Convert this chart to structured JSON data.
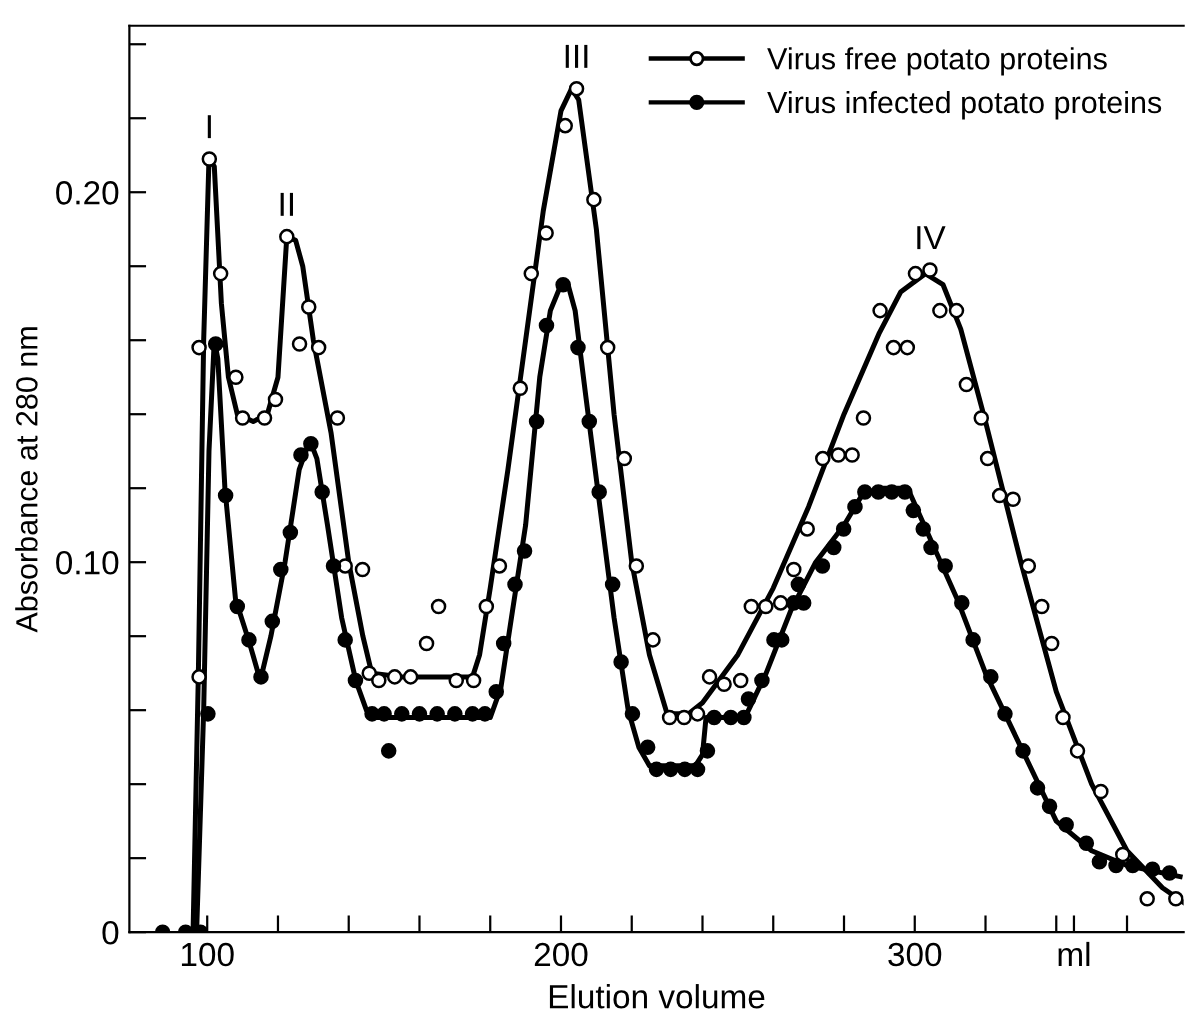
{
  "chart_data": {
    "type": "scatter",
    "xlabel": "Elution volume",
    "ylabel": "Absorbance at 280 nm",
    "xlim": [
      78,
      376
    ],
    "ylim": [
      0,
      0.245
    ],
    "xticks": [
      {
        "value": 100,
        "label": "100"
      },
      {
        "value": 120,
        "label": null
      },
      {
        "value": 140,
        "label": null
      },
      {
        "value": 160,
        "label": null
      },
      {
        "value": 180,
        "label": null
      },
      {
        "value": 200,
        "label": "200"
      },
      {
        "value": 220,
        "label": null
      },
      {
        "value": 240,
        "label": null
      },
      {
        "value": 260,
        "label": null
      },
      {
        "value": 280,
        "label": null
      },
      {
        "value": 300,
        "label": "300"
      },
      {
        "value": 320,
        "label": null
      },
      {
        "value": 340,
        "label": null
      },
      {
        "value": 345,
        "label": "ml"
      },
      {
        "value": 360,
        "label": null
      }
    ],
    "yticks": [
      0,
      {
        "value": 0.02,
        "label": null
      },
      {
        "value": 0.04,
        "label": null
      },
      {
        "value": 0.06,
        "label": null
      },
      {
        "value": 0.08,
        "label": null
      },
      {
        "value": 0.1,
        "label": "0.10"
      },
      {
        "value": 0.12,
        "label": null
      },
      {
        "value": 0.14,
        "label": null
      },
      {
        "value": 0.16,
        "label": null
      },
      {
        "value": 0.18,
        "label": null
      },
      {
        "value": 0.2,
        "label": "0.20"
      },
      {
        "value": 0.22,
        "label": null
      },
      {
        "value": 0.24,
        "label": null
      }
    ],
    "grid": false,
    "legend": "top right",
    "annotations": [
      {
        "text": "I",
        "x": 100.6,
        "y": 0.209
      },
      {
        "text": "II",
        "x": 122.5,
        "y": 0.188
      },
      {
        "text": "III",
        "x": 204.4,
        "y": 0.228
      },
      {
        "text": "IV",
        "x": 304.3,
        "y": 0.179
      }
    ],
    "series": [
      {
        "name": "Virus free potato proteins",
        "color": "#ffffff",
        "marker": "circle",
        "x": [
          97.7,
          97.7,
          100.6,
          103.8,
          108.1,
          110,
          116.2,
          119.3,
          122.5,
          128.7,
          126.1,
          131.5,
          136.8,
          139,
          143.9,
          145.8,
          148.5,
          153,
          157.5,
          162,
          165.4,
          170.4,
          175.3,
          178.9,
          182.6,
          188.5,
          191.6,
          195.8,
          201.2,
          204.4,
          209.3,
          213.2,
          217.9,
          221.3,
          226,
          230.7,
          234.8,
          238.6,
          242,
          246.1,
          250.8,
          253.8,
          257.9,
          262.1,
          265.8,
          269.6,
          274,
          278.4,
          282.3,
          285.5,
          290.2,
          294,
          297.9,
          300.2,
          304.3,
          307.1,
          311.8,
          314.6,
          318.8,
          320.6,
          324,
          327.8,
          332.1,
          335.9,
          338.7,
          341.9,
          346,
          352.6,
          358.8,
          365.7,
          373.8
        ],
        "values": [
          0.069,
          0.158,
          0.209,
          0.178,
          0.15,
          0.139,
          0.139,
          0.144,
          0.188,
          0.169,
          0.159,
          0.158,
          0.139,
          0.099,
          0.098,
          0.07,
          0.068,
          0.069,
          0.069,
          0.078,
          0.088,
          0.068,
          0.068,
          0.088,
          0.099,
          0.147,
          0.178,
          0.189,
          0.218,
          0.228,
          0.198,
          0.158,
          0.128,
          0.099,
          0.079,
          0.058,
          0.058,
          0.059,
          0.069,
          0.067,
          0.068,
          0.088,
          0.088,
          0.089,
          0.098,
          0.109,
          0.128,
          0.129,
          0.129,
          0.139,
          0.168,
          0.158,
          0.158,
          0.178,
          0.179,
          0.168,
          0.168,
          0.148,
          0.139,
          0.128,
          0.118,
          0.117,
          0.099,
          0.088,
          0.078,
          0.058,
          0.049,
          0.038,
          0.021,
          0.009,
          0.009
        ]
      },
      {
        "name": "Virus infected potato proteins",
        "color": "#000000",
        "marker": "circle",
        "x": [
          87.4,
          93.9,
          98.1,
          100.2,
          102.4,
          105.2,
          108.5,
          111.8,
          115.2,
          118.4,
          120.8,
          123.5,
          126.5,
          129.3,
          132.5,
          135.7,
          139,
          141.9,
          146.6,
          150,
          155,
          160,
          165,
          170,
          175,
          178.5,
          151.3,
          181.7,
          183.8,
          187,
          189.7,
          193.1,
          195.9,
          200.6,
          204.8,
          208,
          210.8,
          214.6,
          217,
          220.2,
          224.5,
          227,
          231,
          235,
          238.6,
          241.4,
          243.3,
          248,
          251.7,
          253,
          256.8,
          260.2,
          262.4,
          265.8,
          267.1,
          268.6,
          273.9,
          277.1,
          279.9,
          283.1,
          285.9,
          289.7,
          293.5,
          297.2,
          299.6,
          302.4,
          304.6,
          308.6,
          313.3,
          316.5,
          321.5,
          325.5,
          330.6,
          334.7,
          338.1,
          342.8,
          348.5,
          352.2,
          356.9,
          361.6,
          367.2,
          372
        ],
        "values": [
          0,
          0,
          0,
          0.059,
          0.159,
          0.118,
          0.088,
          0.079,
          0.069,
          0.084,
          0.098,
          0.108,
          0.129,
          0.132,
          0.119,
          0.099,
          0.079,
          0.068,
          0.059,
          0.059,
          0.059,
          0.059,
          0.059,
          0.059,
          0.059,
          0.059,
          0.049,
          0.065,
          0.078,
          0.094,
          0.103,
          0.138,
          0.164,
          0.175,
          0.158,
          0.138,
          0.119,
          0.094,
          0.073,
          0.059,
          0.05,
          0.044,
          0.044,
          0.044,
          0.044,
          0.049,
          0.058,
          0.058,
          0.058,
          0.063,
          0.068,
          0.079,
          0.079,
          0.089,
          0.094,
          0.089,
          0.099,
          0.104,
          0.109,
          0.115,
          0.119,
          0.119,
          0.119,
          0.119,
          0.114,
          0.109,
          0.104,
          0.099,
          0.089,
          0.079,
          0.069,
          0.059,
          0.049,
          0.039,
          0.034,
          0.029,
          0.024,
          0.019,
          0.018,
          0.018,
          0.017,
          0.016
        ]
      },
      {
        "type": "line",
        "color": "#000000",
        "marker": "none",
        "x": [
          96,
          97.5,
          99,
          100.5,
          102,
          104,
          106,
          108.5,
          113,
          117,
          120,
          122.5,
          125,
          127,
          130,
          135,
          140,
          144,
          146.5,
          155,
          175,
          177,
          180,
          185,
          190,
          195,
          200,
          203,
          205,
          210,
          215,
          220,
          225,
          230,
          236,
          240,
          250,
          260,
          270,
          280,
          290,
          296,
          303,
          308,
          313,
          320,
          330,
          340,
          350,
          360,
          370,
          376
        ],
        "values": [
          0,
          0.07,
          0.16,
          0.209,
          0.207,
          0.17,
          0.15,
          0.14,
          0.138,
          0.14,
          0.15,
          0.188,
          0.187,
          0.18,
          0.16,
          0.135,
          0.1,
          0.08,
          0.07,
          0.069,
          0.069,
          0.075,
          0.093,
          0.125,
          0.16,
          0.195,
          0.222,
          0.228,
          0.225,
          0.19,
          0.14,
          0.1,
          0.075,
          0.059,
          0.059,
          0.062,
          0.075,
          0.093,
          0.115,
          0.14,
          0.162,
          0.173,
          0.178,
          0.175,
          0.163,
          0.138,
          0.1,
          0.065,
          0.04,
          0.022,
          0.012,
          0.008
        ]
      },
      {
        "type": "line",
        "color": "#000000",
        "marker": "none",
        "x": [
          97,
          99,
          100.5,
          102,
          103,
          105,
          108,
          112,
          115,
          118,
          122,
          126,
          129,
          131,
          134,
          138,
          142,
          145,
          147,
          180,
          183,
          186,
          190,
          194,
          197,
          200,
          202,
          204,
          207,
          211,
          215,
          219,
          222,
          225,
          238,
          240,
          241,
          252,
          258,
          265,
          272,
          280,
          285,
          290,
          298,
          305,
          312,
          320,
          330,
          340,
          350,
          360,
          375
        ],
        "values": [
          0,
          0.06,
          0.13,
          0.16,
          0.155,
          0.12,
          0.09,
          0.078,
          0.068,
          0.08,
          0.1,
          0.125,
          0.133,
          0.128,
          0.11,
          0.085,
          0.068,
          0.06,
          0.058,
          0.058,
          0.066,
          0.085,
          0.11,
          0.15,
          0.168,
          0.175,
          0.175,
          0.168,
          0.145,
          0.115,
          0.085,
          0.06,
          0.05,
          0.045,
          0.045,
          0.048,
          0.058,
          0.058,
          0.07,
          0.087,
          0.1,
          0.11,
          0.118,
          0.12,
          0.12,
          0.105,
          0.09,
          0.07,
          0.05,
          0.03,
          0.022,
          0.018,
          0.015
        ]
      }
    ]
  }
}
